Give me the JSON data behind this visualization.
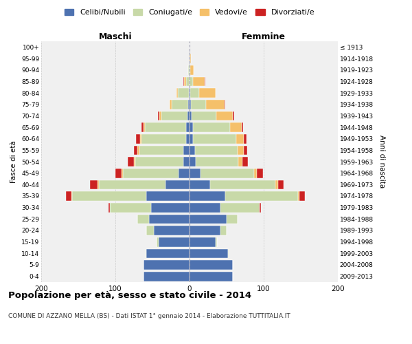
{
  "age_groups": [
    "0-4",
    "5-9",
    "10-14",
    "15-19",
    "20-24",
    "25-29",
    "30-34",
    "35-39",
    "40-44",
    "45-49",
    "50-54",
    "55-59",
    "60-64",
    "65-69",
    "70-74",
    "75-79",
    "80-84",
    "85-89",
    "90-94",
    "95-99",
    "100+"
  ],
  "birth_years": [
    "2009-2013",
    "2004-2008",
    "1999-2003",
    "1994-1998",
    "1989-1993",
    "1984-1988",
    "1979-1983",
    "1974-1978",
    "1969-1973",
    "1964-1968",
    "1959-1963",
    "1954-1958",
    "1949-1953",
    "1944-1948",
    "1939-1943",
    "1934-1938",
    "1929-1933",
    "1924-1928",
    "1919-1923",
    "1914-1918",
    "≤ 1913"
  ],
  "males": {
    "celibi": [
      62,
      62,
      58,
      42,
      48,
      55,
      52,
      58,
      32,
      15,
      8,
      8,
      5,
      5,
      3,
      2,
      1,
      0,
      0,
      0,
      0
    ],
    "coniugati": [
      0,
      0,
      1,
      2,
      10,
      15,
      55,
      100,
      90,
      75,
      65,
      60,
      60,
      55,
      35,
      22,
      15,
      5,
      2,
      0,
      0
    ],
    "vedovi": [
      0,
      0,
      0,
      0,
      0,
      0,
      0,
      1,
      2,
      2,
      2,
      2,
      2,
      2,
      3,
      3,
      2,
      2,
      0,
      0,
      0
    ],
    "divorziati": [
      0,
      0,
      0,
      0,
      0,
      0,
      2,
      8,
      10,
      8,
      8,
      5,
      5,
      3,
      2,
      0,
      0,
      1,
      0,
      0,
      0
    ]
  },
  "females": {
    "nubili": [
      58,
      58,
      52,
      35,
      42,
      50,
      42,
      48,
      28,
      15,
      8,
      7,
      5,
      5,
      3,
      2,
      1,
      0,
      0,
      0,
      0
    ],
    "coniugate": [
      0,
      0,
      1,
      2,
      8,
      15,
      52,
      98,
      88,
      72,
      58,
      58,
      58,
      50,
      33,
      20,
      12,
      5,
      1,
      0,
      0
    ],
    "vedove": [
      0,
      0,
      0,
      0,
      0,
      0,
      0,
      2,
      3,
      4,
      5,
      8,
      10,
      15,
      22,
      25,
      22,
      15,
      5,
      2,
      0
    ],
    "divorziate": [
      0,
      0,
      0,
      0,
      0,
      0,
      2,
      8,
      8,
      8,
      8,
      5,
      4,
      2,
      2,
      1,
      0,
      1,
      0,
      0,
      0
    ]
  },
  "colors": {
    "celibi": "#4e72b0",
    "coniugati": "#c8d9a8",
    "vedovi": "#f5c06a",
    "divorziati": "#cc2222"
  },
  "xlim": 200,
  "title": "Popolazione per età, sesso e stato civile - 2014",
  "subtitle": "COMUNE DI AZZANO MELLA (BS) - Dati ISTAT 1° gennaio 2014 - Elaborazione TUTTITALIA.IT",
  "ylabel_left": "Fasce di età",
  "ylabel_right": "Anni di nascita",
  "xlabel_left": "Maschi",
  "xlabel_right": "Femmine",
  "background_color": "#ffffff",
  "plot_bg_color": "#f0f0f0",
  "grid_color": "#cccccc"
}
